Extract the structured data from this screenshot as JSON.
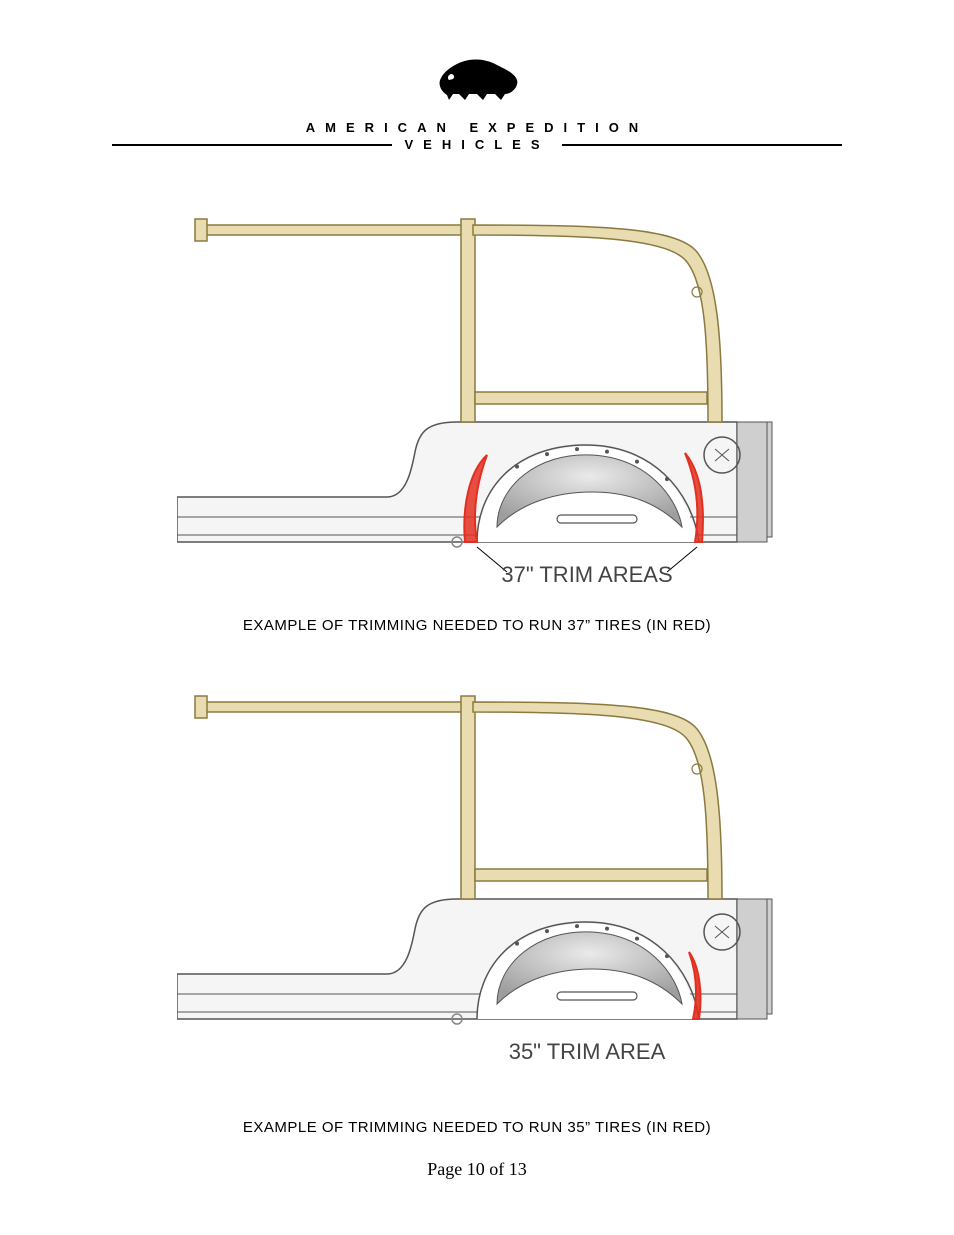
{
  "brand": {
    "line1": "AMERICAN EXPEDITION",
    "line2": "VEHICLES"
  },
  "figures": [
    {
      "diagram_label": "37\" TRIM AREAS",
      "caption": "EXAMPLE OF TRIMMING NEEDED TO RUN 37” TIRES (IN RED)",
      "trim_variant": "37",
      "colors": {
        "body_fill": "#f5f5f5",
        "body_stroke": "#555555",
        "cage_fill": "#e8dcb0",
        "cage_stroke": "#8a7a40",
        "fender_shade": "#9d9d9d",
        "trim_stroke": "#e23020",
        "label_color": "#444444",
        "hole_stroke": "#888888"
      }
    },
    {
      "diagram_label": "35\" TRIM AREA",
      "caption": "EXAMPLE OF TRIMMING NEEDED TO RUN 35” TIRES (IN RED)",
      "trim_variant": "35",
      "colors": {
        "body_fill": "#f5f5f5",
        "body_stroke": "#555555",
        "cage_fill": "#e8dcb0",
        "cage_stroke": "#8a7a40",
        "fender_shade": "#9d9d9d",
        "trim_stroke": "#e23020",
        "label_color": "#444444",
        "hole_stroke": "#888888"
      }
    }
  ],
  "page_number": "Page 10 of 13"
}
